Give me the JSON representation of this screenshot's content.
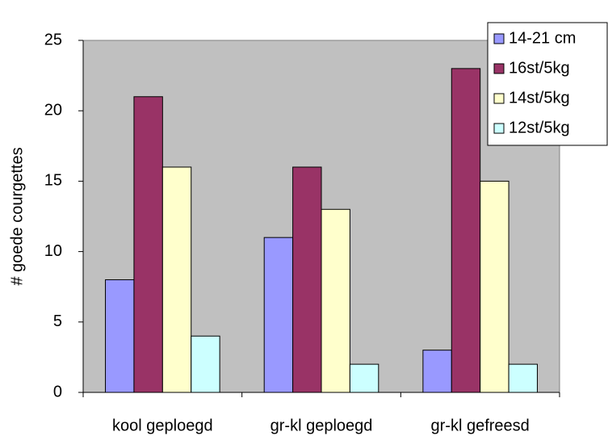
{
  "chart_data": {
    "type": "bar",
    "y_label": "# goede courgettes",
    "categories": [
      "kool geploegd",
      "gr-kl geploegd",
      "gr-kl gefreesd"
    ],
    "series": [
      {
        "name": "14-21 cm",
        "color": "#9999ff",
        "values": [
          8,
          11,
          3
        ]
      },
      {
        "name": "16st/5kg",
        "color": "#993366",
        "values": [
          21,
          16,
          23
        ]
      },
      {
        "name": "14st/5kg",
        "color": "#ffffcc",
        "values": [
          16,
          13,
          15
        ]
      },
      {
        "name": "12st/5kg",
        "color": "#ccffff",
        "values": [
          4,
          2,
          2
        ]
      }
    ],
    "ylim": [
      0,
      25
    ],
    "yticks": [
      0,
      5,
      10,
      15,
      20,
      25
    ],
    "grid": false,
    "legend": "top-right",
    "plot_background": "#c0c0c0"
  }
}
